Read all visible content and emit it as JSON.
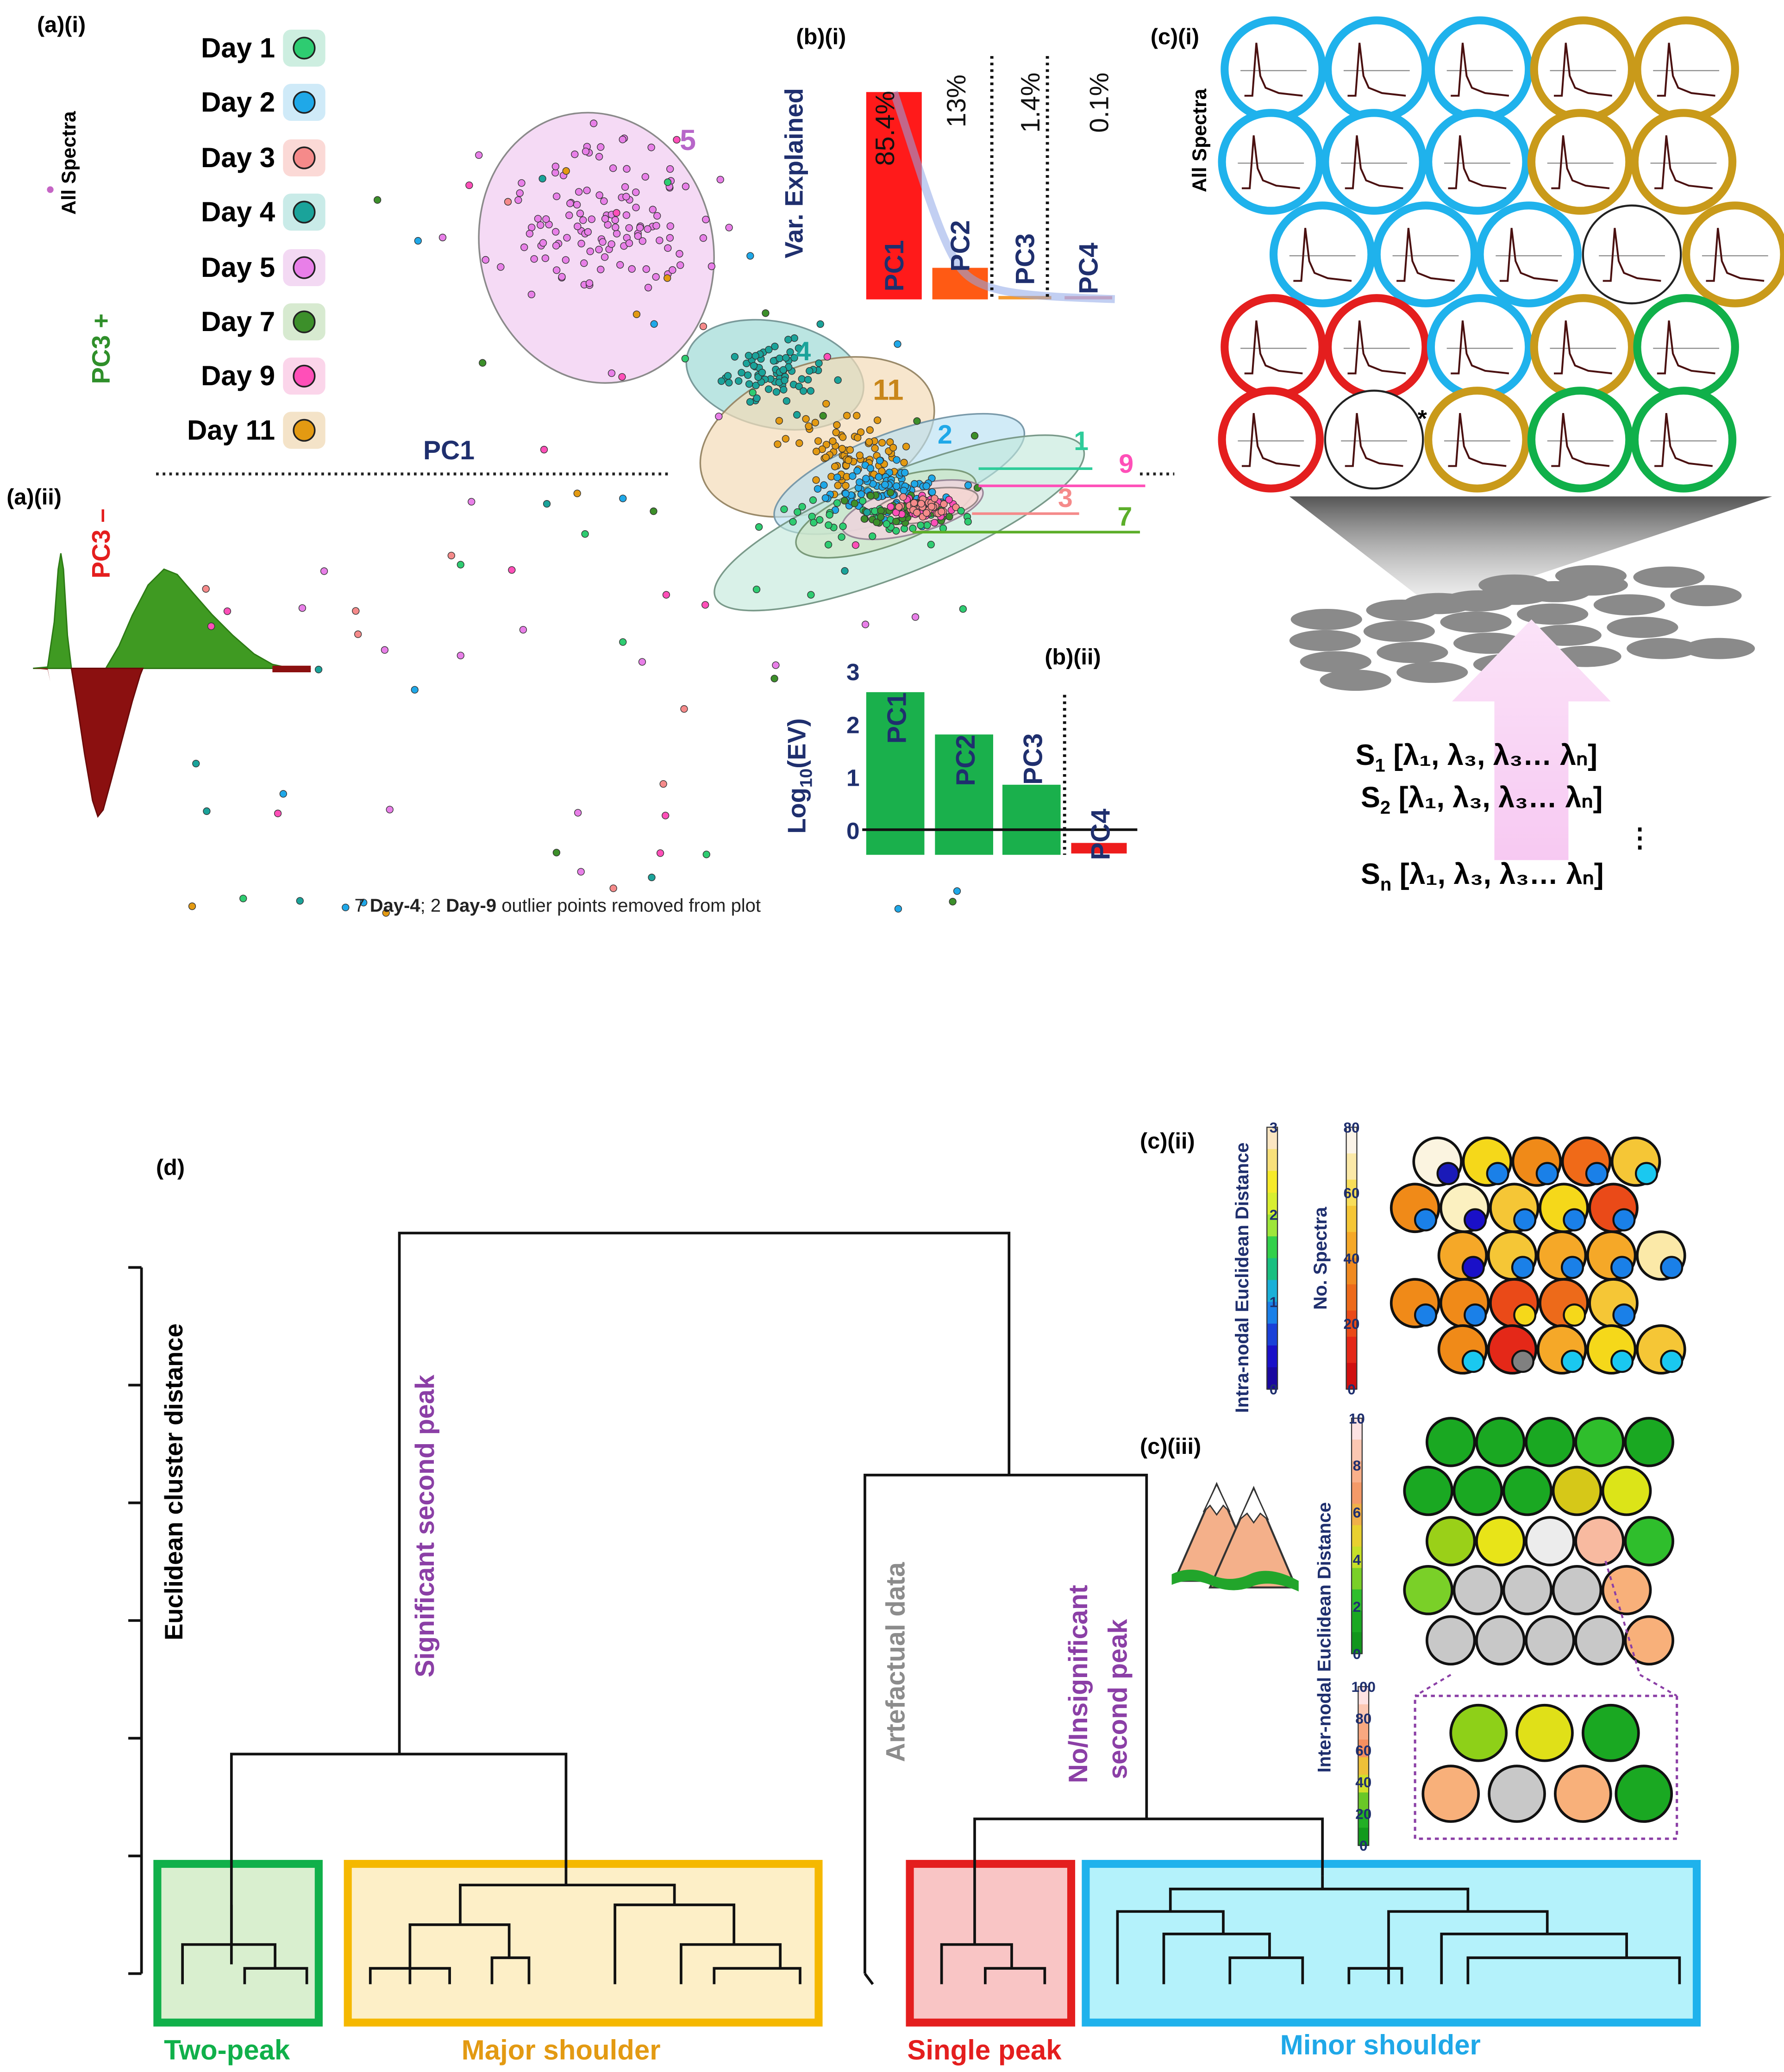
{
  "panels": {
    "a_i": "(a)(i)",
    "a_ii": "(a)(ii)",
    "b_i": "(b)(i)",
    "b_ii": "(b)(ii)",
    "c_i": "(c)(i)",
    "c_ii": "(c)(ii)",
    "c_iii": "(c)(iii)",
    "d": "(d)"
  },
  "legend": {
    "all_spectra": "All Spectra",
    "items": [
      {
        "label": "Day 1",
        "color": "#2ecc71",
        "bg": "#cdeee0"
      },
      {
        "label": "Day 2",
        "color": "#1fa8e8",
        "bg": "#cfeaf8"
      },
      {
        "label": "Day 3",
        "color": "#f58a8a",
        "bg": "#fbd9d6"
      },
      {
        "label": "Day 4",
        "color": "#1aa39a",
        "bg": "#c9ebe8"
      },
      {
        "label": "Day 5",
        "color": "#e87fe8",
        "bg": "#f3d9f3"
      },
      {
        "label": "Day 7",
        "color": "#3c8f2a",
        "bg": "#d7ead0"
      },
      {
        "label": "Day 9",
        "color": "#ff4fb8",
        "bg": "#fbd5ea"
      },
      {
        "label": "Day 11",
        "color": "#e39a12",
        "bg": "#f4e3c8"
      }
    ]
  },
  "scatter": {
    "pc1_label": "PC1",
    "pc3_plus": "PC3 +",
    "pc3_minus": "PC3 –",
    "cluster_labels": [
      "5",
      "4",
      "11",
      "2",
      "1",
      "9",
      "3",
      "7"
    ],
    "footnote_pre": "7 ",
    "footnote_b1": "Day-4",
    "footnote_mid": "; 2 ",
    "footnote_b2": "Day-9",
    "footnote_post": " outlier points removed from plot"
  },
  "chart_data": [
    {
      "type": "bar",
      "title": "Var. Explained",
      "categories": [
        "PC1",
        "PC2",
        "PC3",
        "PC4"
      ],
      "values": [
        85.4,
        13,
        1.4,
        0.1
      ],
      "value_labels": [
        "85.4%",
        "13%",
        "1.4%",
        "0.1%"
      ],
      "ylabel": "Var. Explained",
      "ylim": [
        0,
        100
      ]
    },
    {
      "type": "bar",
      "title": "",
      "categories": [
        "PC1",
        "PC2",
        "PC3",
        "PC4"
      ],
      "values": [
        2.6,
        1.8,
        0.85,
        -0.25
      ],
      "ylabel": "Log10(EV)",
      "yticks": [
        "0",
        "1",
        "2",
        "3"
      ],
      "ylim": [
        -0.5,
        3
      ]
    }
  ],
  "som": {
    "all_spectra": "All Spectra",
    "asterisk": "*",
    "formula": [
      {
        "s": "S",
        "sub": "1",
        "rest": " [λ₁, λ₃, λ₃… λₙ]"
      },
      {
        "s": "S",
        "sub": "2",
        "rest": " [λ₁, λ₃, λ₃… λₙ]"
      },
      {
        "s": "S",
        "sub": "n",
        "rest": " [λ₁, λ₃, λ₃… λₙ]"
      }
    ],
    "vdots": "⋮"
  },
  "colorbars": {
    "intra_title": "Intra-nodal Euclidean Distance",
    "intra_ticks": [
      "3",
      "2",
      "1",
      "0"
    ],
    "nspectra_title": "No. Spectra",
    "nspectra_ticks": [
      "80",
      "60",
      "40",
      "20",
      "0"
    ],
    "inter_title": "Inter-nodal Euclidean Distance",
    "inter_ticks_a": [
      "10",
      "8",
      "6",
      "4",
      "2",
      "0"
    ],
    "inter_ticks_b": [
      "100",
      "80",
      "60",
      "40",
      "20",
      "0"
    ]
  },
  "dendrogram": {
    "yaxis_label": "Euclidean cluster distance",
    "branch_sig": "Significant second peak",
    "branch_art": "Artefactual data",
    "branch_noins_1": "No/Insignificant",
    "branch_noins_2": "second peak",
    "groups": [
      "Two-peak",
      "Major shoulder",
      "Single peak",
      "Minor shoulder"
    ]
  },
  "colors": {
    "green": "#10b04a",
    "orange": "#f5b800",
    "red": "#e41e1e",
    "blue": "#1fb2ec",
    "purple": "#8b3fa6",
    "navy": "#1f2f6e"
  }
}
